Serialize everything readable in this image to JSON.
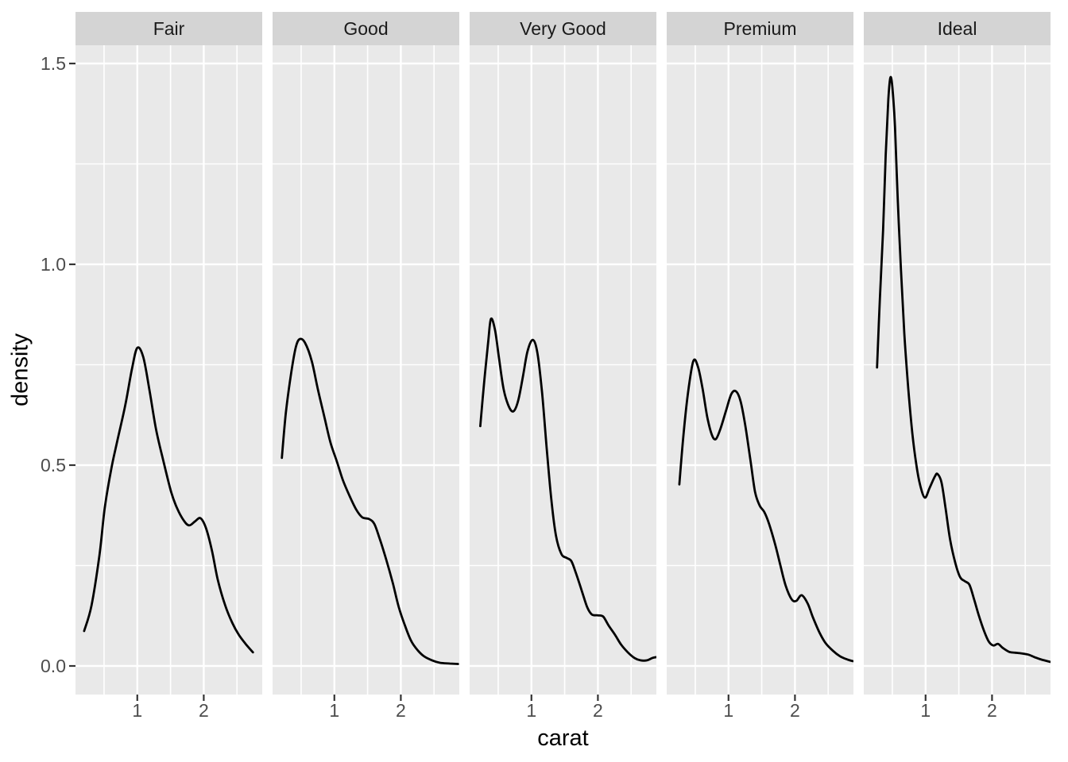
{
  "chart_data": {
    "type": "line",
    "subtype": "faceted-density",
    "title": "",
    "xlabel": "carat",
    "ylabel": "density",
    "facets": [
      "Fair",
      "Good",
      "Very Good",
      "Premium",
      "Ideal"
    ],
    "x_tick_labels": [
      "1",
      "2"
    ],
    "x_tick_values": [
      1,
      2
    ],
    "y_tick_labels": [
      "0.0",
      "0.5",
      "1.0",
      "1.5"
    ],
    "y_tick_values": [
      0.0,
      0.5,
      1.0,
      1.5
    ],
    "x_minor_breaks": [
      0.5,
      1.5,
      2.5
    ],
    "y_minor_breaks": [
      0.25,
      0.75,
      1.25
    ],
    "xlim": [
      0.07,
      2.88
    ],
    "ylim": [
      -0.07,
      1.545
    ],
    "grid": true,
    "legend_position": "none",
    "theme": {
      "panel_bg": "#E9E9E9",
      "strip_bg": "#D4D4D4",
      "grid_color": "#FFFFFF",
      "line_color": "#000000",
      "tick_mark_color": "#333333",
      "tick_label_color": "#4D4D4D",
      "strip_text_color": "#1A1A1A",
      "axis_title_color": "#000000"
    },
    "series": [
      {
        "name": "Fair",
        "points": [
          [
            0.2,
            0.087
          ],
          [
            0.31,
            0.15
          ],
          [
            0.43,
            0.275
          ],
          [
            0.51,
            0.393
          ],
          [
            0.61,
            0.492
          ],
          [
            0.7,
            0.561
          ],
          [
            0.82,
            0.65
          ],
          [
            0.92,
            0.74
          ],
          [
            1.0,
            0.792
          ],
          [
            1.09,
            0.769
          ],
          [
            1.18,
            0.69
          ],
          [
            1.28,
            0.591
          ],
          [
            1.39,
            0.512
          ],
          [
            1.51,
            0.433
          ],
          [
            1.6,
            0.392
          ],
          [
            1.7,
            0.362
          ],
          [
            1.78,
            0.35
          ],
          [
            1.87,
            0.36
          ],
          [
            1.95,
            0.368
          ],
          [
            2.03,
            0.345
          ],
          [
            2.12,
            0.29
          ],
          [
            2.21,
            0.215
          ],
          [
            2.32,
            0.152
          ],
          [
            2.43,
            0.107
          ],
          [
            2.53,
            0.077
          ],
          [
            2.64,
            0.053
          ],
          [
            2.74,
            0.034
          ]
        ]
      },
      {
        "name": "Good",
        "points": [
          [
            0.21,
            0.518
          ],
          [
            0.27,
            0.63
          ],
          [
            0.35,
            0.729
          ],
          [
            0.42,
            0.794
          ],
          [
            0.48,
            0.814
          ],
          [
            0.56,
            0.804
          ],
          [
            0.66,
            0.759
          ],
          [
            0.75,
            0.69
          ],
          [
            0.85,
            0.62
          ],
          [
            0.94,
            0.557
          ],
          [
            1.04,
            0.508
          ],
          [
            1.13,
            0.462
          ],
          [
            1.23,
            0.423
          ],
          [
            1.33,
            0.389
          ],
          [
            1.42,
            0.37
          ],
          [
            1.52,
            0.366
          ],
          [
            1.6,
            0.354
          ],
          [
            1.68,
            0.318
          ],
          [
            1.78,
            0.265
          ],
          [
            1.88,
            0.206
          ],
          [
            1.97,
            0.146
          ],
          [
            2.07,
            0.097
          ],
          [
            2.16,
            0.061
          ],
          [
            2.26,
            0.038
          ],
          [
            2.35,
            0.024
          ],
          [
            2.47,
            0.014
          ],
          [
            2.59,
            0.008
          ],
          [
            2.74,
            0.006
          ],
          [
            2.86,
            0.005
          ]
        ]
      },
      {
        "name": "Very Good",
        "points": [
          [
            0.23,
            0.597
          ],
          [
            0.29,
            0.709
          ],
          [
            0.35,
            0.808
          ],
          [
            0.39,
            0.864
          ],
          [
            0.45,
            0.838
          ],
          [
            0.51,
            0.769
          ],
          [
            0.58,
            0.69
          ],
          [
            0.66,
            0.646
          ],
          [
            0.73,
            0.634
          ],
          [
            0.8,
            0.66
          ],
          [
            0.87,
            0.719
          ],
          [
            0.94,
            0.783
          ],
          [
            1.02,
            0.812
          ],
          [
            1.09,
            0.779
          ],
          [
            1.16,
            0.68
          ],
          [
            1.23,
            0.541
          ],
          [
            1.3,
            0.413
          ],
          [
            1.37,
            0.324
          ],
          [
            1.45,
            0.279
          ],
          [
            1.53,
            0.269
          ],
          [
            1.6,
            0.261
          ],
          [
            1.67,
            0.231
          ],
          [
            1.76,
            0.186
          ],
          [
            1.84,
            0.146
          ],
          [
            1.91,
            0.128
          ],
          [
            2.0,
            0.126
          ],
          [
            2.08,
            0.123
          ],
          [
            2.16,
            0.101
          ],
          [
            2.26,
            0.077
          ],
          [
            2.35,
            0.053
          ],
          [
            2.45,
            0.034
          ],
          [
            2.55,
            0.02
          ],
          [
            2.64,
            0.014
          ],
          [
            2.74,
            0.014
          ],
          [
            2.82,
            0.02
          ],
          [
            2.88,
            0.022
          ]
        ]
      },
      {
        "name": "Premium",
        "points": [
          [
            0.26,
            0.452
          ],
          [
            0.32,
            0.571
          ],
          [
            0.39,
            0.68
          ],
          [
            0.47,
            0.759
          ],
          [
            0.54,
            0.745
          ],
          [
            0.61,
            0.69
          ],
          [
            0.68,
            0.62
          ],
          [
            0.75,
            0.575
          ],
          [
            0.81,
            0.565
          ],
          [
            0.88,
            0.591
          ],
          [
            0.96,
            0.634
          ],
          [
            1.04,
            0.676
          ],
          [
            1.11,
            0.684
          ],
          [
            1.18,
            0.66
          ],
          [
            1.25,
            0.601
          ],
          [
            1.33,
            0.512
          ],
          [
            1.4,
            0.433
          ],
          [
            1.47,
            0.399
          ],
          [
            1.54,
            0.383
          ],
          [
            1.61,
            0.354
          ],
          [
            1.7,
            0.304
          ],
          [
            1.78,
            0.251
          ],
          [
            1.86,
            0.2
          ],
          [
            1.95,
            0.166
          ],
          [
            2.02,
            0.162
          ],
          [
            2.1,
            0.176
          ],
          [
            2.19,
            0.156
          ],
          [
            2.27,
            0.121
          ],
          [
            2.37,
            0.083
          ],
          [
            2.46,
            0.057
          ],
          [
            2.57,
            0.038
          ],
          [
            2.68,
            0.024
          ],
          [
            2.79,
            0.016
          ],
          [
            2.87,
            0.012
          ]
        ]
      },
      {
        "name": "Ideal",
        "points": [
          [
            0.27,
            0.743
          ],
          [
            0.31,
            0.907
          ],
          [
            0.36,
            1.085
          ],
          [
            0.4,
            1.273
          ],
          [
            0.44,
            1.411
          ],
          [
            0.47,
            1.465
          ],
          [
            0.5,
            1.441
          ],
          [
            0.54,
            1.342
          ],
          [
            0.58,
            1.164
          ],
          [
            0.63,
            0.986
          ],
          [
            0.68,
            0.828
          ],
          [
            0.74,
            0.69
          ],
          [
            0.8,
            0.581
          ],
          [
            0.86,
            0.502
          ],
          [
            0.92,
            0.449
          ],
          [
            0.99,
            0.419
          ],
          [
            1.06,
            0.443
          ],
          [
            1.14,
            0.472
          ],
          [
            1.18,
            0.478
          ],
          [
            1.24,
            0.457
          ],
          [
            1.3,
            0.393
          ],
          [
            1.37,
            0.314
          ],
          [
            1.45,
            0.255
          ],
          [
            1.52,
            0.221
          ],
          [
            1.59,
            0.211
          ],
          [
            1.66,
            0.202
          ],
          [
            1.73,
            0.166
          ],
          [
            1.8,
            0.126
          ],
          [
            1.88,
            0.087
          ],
          [
            1.95,
            0.061
          ],
          [
            2.02,
            0.051
          ],
          [
            2.09,
            0.055
          ],
          [
            2.16,
            0.045
          ],
          [
            2.26,
            0.035
          ],
          [
            2.35,
            0.033
          ],
          [
            2.45,
            0.031
          ],
          [
            2.55,
            0.028
          ],
          [
            2.64,
            0.022
          ],
          [
            2.74,
            0.016
          ],
          [
            2.88,
            0.01
          ]
        ]
      }
    ]
  }
}
